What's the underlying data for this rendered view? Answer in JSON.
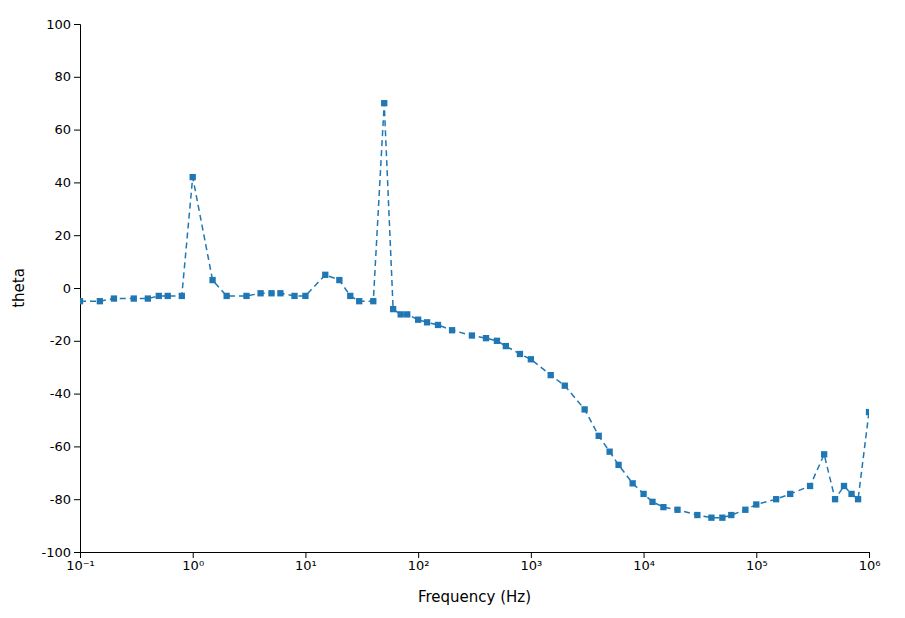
{
  "chart_data": {
    "type": "line",
    "xlabel": "Frequency (Hz)",
    "ylabel": "theta",
    "x": [
      0.1,
      0.15,
      0.2,
      0.3,
      0.4,
      0.5,
      0.6,
      0.8,
      1.0,
      1.5,
      2.0,
      3.0,
      4.0,
      5.0,
      6.0,
      8.0,
      10.0,
      15.0,
      20.0,
      25.0,
      30.0,
      40.0,
      50.0,
      60.0,
      70.0,
      80.0,
      100.0,
      120.0,
      150.0,
      200.0,
      300.0,
      400.0,
      500.0,
      600.0,
      800.0,
      1000.0,
      1500.0,
      2000.0,
      3000.0,
      4000.0,
      5000.0,
      6000.0,
      8000.0,
      10000.0,
      12000.0,
      15000.0,
      20000.0,
      30000.0,
      40000.0,
      50000.0,
      60000.0,
      80000.0,
      100000.0,
      150000.0,
      200000.0,
      300000.0,
      400000.0,
      500000.0,
      600000.0,
      700000.0,
      800000.0,
      1000000.0
    ],
    "values": [
      -5,
      -5,
      -4,
      -4,
      -4,
      -3,
      -3,
      -3,
      42,
      3,
      -3,
      -3,
      -2,
      -2,
      -2,
      -3,
      -3,
      5,
      3,
      -3,
      -5,
      -5,
      70,
      -8,
      -10,
      -10,
      -12,
      -13,
      -14,
      -16,
      -18,
      -19,
      -20,
      -22,
      -25,
      -27,
      -33,
      -37,
      -46,
      -56,
      -62,
      -67,
      -74,
      -78,
      -81,
      -83,
      -84,
      -86,
      -87,
      -87,
      -86,
      -84,
      -82,
      -80,
      -78,
      -75,
      -63,
      -80,
      -75,
      -78,
      -80,
      -47
    ],
    "log": "x",
    "xlim": [
      0.1,
      1000000
    ],
    "xticks": [
      {
        "value": 0.1,
        "label": "10⁻¹"
      },
      {
        "value": 1,
        "label": "10⁰"
      },
      {
        "value": 10,
        "label": "10¹"
      },
      {
        "value": 100,
        "label": "10²"
      },
      {
        "value": 1000,
        "label": "10³"
      },
      {
        "value": 10000,
        "label": "10⁴"
      },
      {
        "value": 100000,
        "label": "10⁵"
      },
      {
        "value": 1000000,
        "label": "10⁶"
      }
    ],
    "ylim": [
      -100,
      100
    ],
    "yticks": [
      -100,
      -80,
      -60,
      -40,
      -20,
      0,
      20,
      40,
      60,
      80,
      100
    ],
    "grid": false,
    "marker": "square",
    "line_style": "dashed"
  }
}
